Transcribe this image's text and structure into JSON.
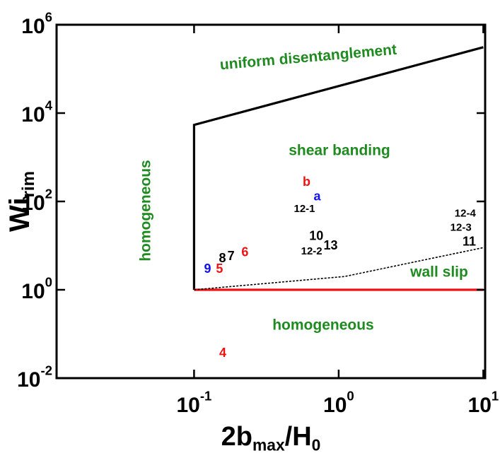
{
  "chart_data": {
    "type": "line",
    "xlabel": "2b_max/H_0",
    "ylabel": "Wi_rim",
    "log_x": true,
    "log_y": true,
    "xlim": [
      0.0112,
      10.3
    ],
    "ylim": [
      0.01,
      1000000
    ],
    "xticks": [
      {
        "value": 0.1,
        "label": "10^-1"
      },
      {
        "value": 1,
        "label": "10^0"
      },
      {
        "value": 10,
        "label": "10^1"
      }
    ],
    "yticks": [
      {
        "value": 0.01,
        "label": "10^-2"
      },
      {
        "value": 1,
        "label": "10^0"
      },
      {
        "value": 100,
        "label": "10^2"
      },
      {
        "value": 10000,
        "label": "10^4"
      },
      {
        "value": 1000000,
        "label": "10^6"
      }
    ],
    "series": [
      {
        "color": "#000000",
        "dashed": false,
        "x": [
          0.1,
          0.1,
          10
        ],
        "y": [
          1,
          5400,
          310000
        ]
      },
      {
        "color": "#ee1111",
        "dashed": false,
        "x": [
          0.1,
          10
        ],
        "y": [
          1,
          1
        ]
      },
      {
        "color": "#000000",
        "dashed": true,
        "x": [
          0.1,
          1.1,
          10
        ],
        "y": [
          1,
          2,
          9
        ]
      }
    ],
    "regions": [
      "uniform disentanglement",
      "shear banding",
      "homogeneous",
      "wall slip",
      "homogeneous"
    ],
    "points": [
      {
        "label": "b",
        "color": "#ee1111",
        "x": 0.6,
        "y": 270
      },
      {
        "label": "a",
        "color": "#1111ee",
        "x": 0.71,
        "y": 125
      },
      {
        "label": "12-1",
        "color": "#000000",
        "x": 0.58,
        "y": 67
      },
      {
        "label": "10",
        "color": "#000000",
        "x": 0.7,
        "y": 16
      },
      {
        "label": "12-2",
        "color": "#000000",
        "x": 0.65,
        "y": 7.3
      },
      {
        "label": "13",
        "color": "#000000",
        "x": 0.88,
        "y": 9.8
      },
      {
        "label": "8",
        "color": "#000000",
        "x": 0.157,
        "y": 5.0
      },
      {
        "label": "7",
        "color": "#000000",
        "x": 0.18,
        "y": 5.6
      },
      {
        "label": "6",
        "color": "#ee1111",
        "x": 0.225,
        "y": 6.8
      },
      {
        "label": "9",
        "color": "#1111ee",
        "x": 0.124,
        "y": 2.9
      },
      {
        "label": "5",
        "color": "#ee1111",
        "x": 0.15,
        "y": 2.9
      },
      {
        "label": "4",
        "color": "#ee1111",
        "x": 0.158,
        "y": 0.036
      },
      {
        "label": "12-4",
        "color": "#000000",
        "x": 7.5,
        "y": 52
      },
      {
        "label": "12-3",
        "color": "#000000",
        "x": 7.0,
        "y": 25
      },
      {
        "label": "11",
        "color": "#000000",
        "x": 8.0,
        "y": 12
      }
    ]
  }
}
